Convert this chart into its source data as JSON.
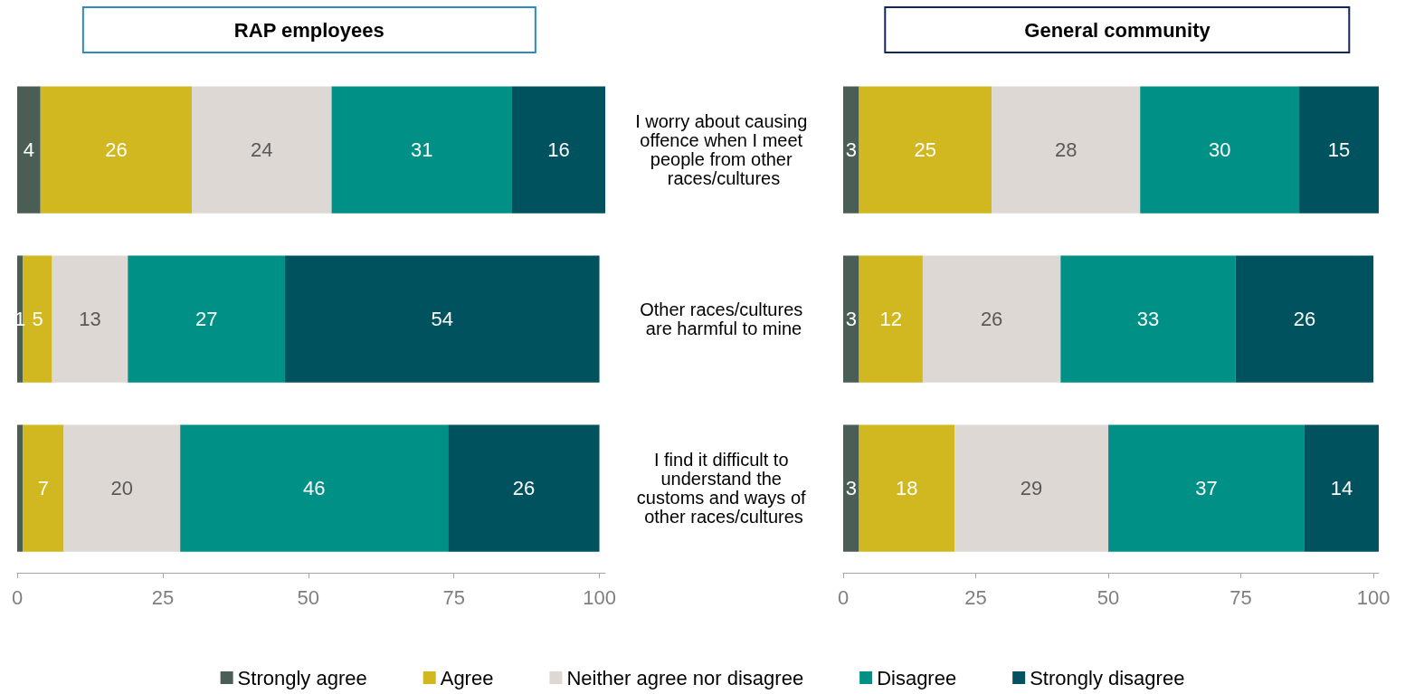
{
  "chart_data": [
    {
      "type": "bar",
      "title": "RAP employees",
      "orientation": "horizontal",
      "stacked": true,
      "tick_labels": "x",
      "categories": [
        "I worry about causing offence when I meet people from other races/cultures",
        "Other races/cultures are harmful to mine",
        "I find it difficult to understand the customs and ways of other races/cultures"
      ],
      "xlim": [
        0,
        101
      ],
      "xticks": [
        0,
        25,
        50,
        75,
        100
      ],
      "series": [
        {
          "color": "#4a5e55",
          "values": [
            4,
            1,
            1
          ],
          "value_labels": [
            "4",
            "1",
            null
          ]
        },
        {
          "color": "#d1b820",
          "values": [
            26,
            5,
            7
          ],
          "value_labels": [
            "26",
            "5",
            "7"
          ]
        },
        {
          "color": "#ddd8d4",
          "values": [
            24,
            13,
            20
          ],
          "value_labels": [
            "24",
            "13",
            "20"
          ]
        },
        {
          "color": "#009085",
          "values": [
            31,
            27,
            46
          ],
          "value_labels": [
            "31",
            "27",
            "46"
          ]
        },
        {
          "color": "#00525e",
          "values": [
            16,
            54,
            26
          ],
          "value_labels": [
            "16",
            "54",
            "26"
          ]
        }
      ]
    },
    {
      "type": "bar",
      "title": "General community",
      "orientation": "horizontal",
      "stacked": true,
      "legend": "bottom",
      "data_labels": true,
      "categories": [
        "I worry about causing offence when I meet people from other races/cultures",
        "Other races/cultures are harmful to mine",
        "I find it difficult to understand the customs and ways of other races/cultures"
      ],
      "xlim": [
        0,
        101
      ],
      "xticks": [
        0,
        25,
        50,
        75,
        100
      ],
      "series": [
        {
          "name": "Strongly agree",
          "color": "#4a5e55",
          "values": [
            3,
            3,
            3
          ]
        },
        {
          "name": "Agree",
          "color": "#d1b820",
          "values": [
            25,
            12,
            18
          ]
        },
        {
          "name": "Neither agree nor disagree",
          "color": "#ddd8d4",
          "values": [
            28,
            26,
            29
          ]
        },
        {
          "name": "Disagree",
          "color": "#009085",
          "values": [
            30,
            33,
            37
          ]
        },
        {
          "name": "Strongly disagree",
          "color": "#00525e",
          "values": [
            15,
            26,
            14
          ]
        }
      ]
    }
  ]
}
